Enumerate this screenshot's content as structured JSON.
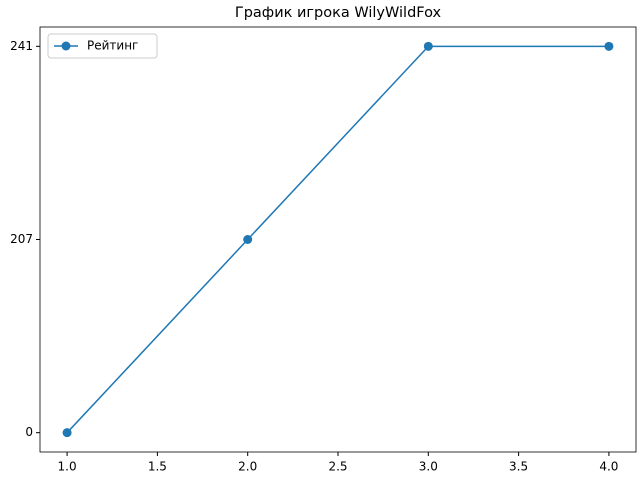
{
  "chart_data": {
    "type": "line",
    "title": "График игрока WilyWildFox",
    "x": [
      1.0,
      2.0,
      3.0,
      4.0
    ],
    "xlim": [
      0.85,
      4.15
    ],
    "xticks": [
      {
        "value": 1.0,
        "label": "1.0"
      },
      {
        "value": 1.5,
        "label": "1.5"
      },
      {
        "value": 2.0,
        "label": "2.0"
      },
      {
        "value": 2.5,
        "label": "2.5"
      },
      {
        "value": 3.0,
        "label": "3.0"
      },
      {
        "value": 3.5,
        "label": "3.5"
      },
      {
        "value": 4.0,
        "label": "4.0"
      }
    ],
    "y_scale": "categorical",
    "yticks": [
      0,
      207,
      241
    ],
    "series": [
      {
        "name": "Рейтинг",
        "color": "#1f77b4",
        "values": [
          0,
          207,
          241,
          241
        ]
      }
    ],
    "legend": "upper left",
    "markers": true
  }
}
